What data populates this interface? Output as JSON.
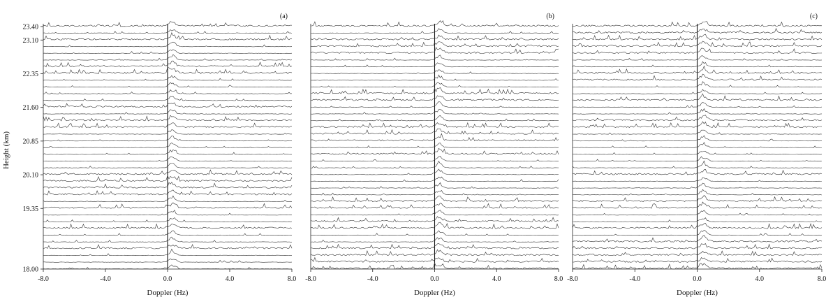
{
  "figure": {
    "ylabel": "Height (km)",
    "xlabel": "Doppler (Hz)"
  },
  "chart_data": [
    {
      "type": "line",
      "panel_label": "(a)",
      "xlabel": "Doppler (Hz)",
      "ylabel": "Height (km)",
      "xlim": [
        -8.0,
        8.0
      ],
      "xticks": [
        "-8.0",
        "-4.0",
        "0.0",
        "4.0",
        "8.0"
      ],
      "ylim": [
        18.0,
        23.4
      ],
      "yticks": [
        "18.00",
        "19.35",
        "20.10",
        "20.85",
        "21.60",
        "22.35",
        "23.10",
        "23.40"
      ],
      "height_step_km": 0.15,
      "n_spectra": 37,
      "peak_doppler_hz": 0.3
    },
    {
      "type": "line",
      "panel_label": "(b)",
      "xlabel": "Doppler (Hz)",
      "xlim": [
        -8.0,
        8.0
      ],
      "xticks": [
        "-8.0",
        "-4.0",
        "0.0",
        "4.0",
        "8.0"
      ],
      "ylim": [
        18.0,
        23.4
      ],
      "height_step_km": 0.15,
      "n_spectra": 37,
      "peak_doppler_hz": 0.3
    },
    {
      "type": "line",
      "panel_label": "(c)",
      "xlabel": "Doppler (Hz)",
      "xlim": [
        -8.0,
        8.0
      ],
      "xticks": [
        "-8.0",
        "-4.0",
        "0.0",
        "4.0",
        "8.0"
      ],
      "ylim": [
        18.0,
        23.4
      ],
      "height_step_km": 0.15,
      "n_spectra": 37,
      "peak_doppler_hz": 0.4
    }
  ]
}
